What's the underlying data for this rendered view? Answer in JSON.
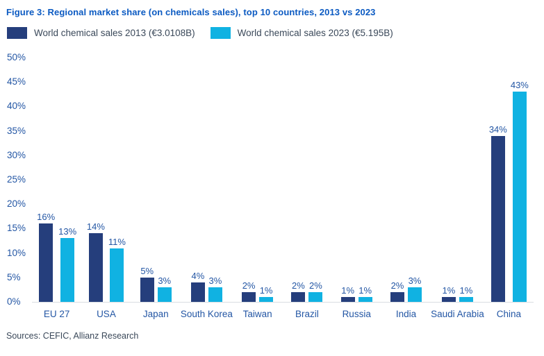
{
  "figure": {
    "title": "Figure 3: Regional market share (on chemicals sales), top 10 countries, 2013 vs 2023",
    "sources": "Sources: CEFIC, Allianz Research"
  },
  "legend": [
    {
      "label": "World chemical sales 2013 (€3.0108B)",
      "color": "#253e7c"
    },
    {
      "label": "World chemical sales 2023 (€5.195B)",
      "color": "#10b2e2"
    }
  ],
  "colors": {
    "title_blue": "#0b5ac2",
    "label_blue": "#2356a4",
    "text_slate": "#3a4859",
    "axis_line": "#d9dde1",
    "bar_2013": "#253e7c",
    "bar_2023": "#10b2e2",
    "background": "#ffffff"
  },
  "chart_data": {
    "type": "bar",
    "categories": [
      "EU 27",
      "USA",
      "Japan",
      "South Korea",
      "Taiwan",
      "Brazil",
      "Russia",
      "India",
      "Saudi Arabia",
      "China"
    ],
    "series": [
      {
        "name": "World chemical sales 2013 (€3.0108B)",
        "color": "#253e7c",
        "values": [
          16,
          14,
          5,
          4,
          2,
          2,
          1,
          2,
          1,
          34
        ]
      },
      {
        "name": "World chemical sales 2023 (€5.195B)",
        "color": "#10b2e2",
        "values": [
          13,
          11,
          3,
          3,
          1,
          2,
          1,
          3,
          1,
          43
        ]
      }
    ],
    "value_suffix": "%",
    "data_labels": true,
    "title": "Figure 3: Regional market share (on chemicals sales), top 10 countries, 2013 vs 2023",
    "xlabel": "",
    "ylabel": "",
    "ylim": [
      0,
      50
    ],
    "yticks": [
      "0%",
      "5%",
      "10%",
      "15%",
      "20%",
      "25%",
      "30%",
      "35%",
      "40%",
      "45%",
      "50%"
    ],
    "grid": false,
    "legend_position": "top"
  }
}
